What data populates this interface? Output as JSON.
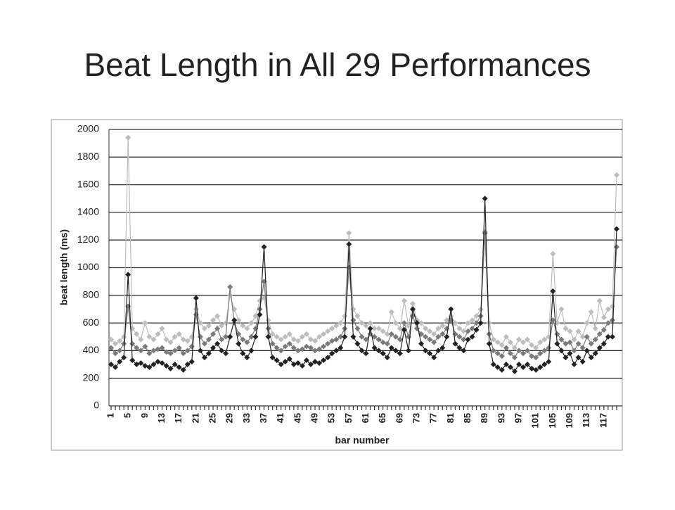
{
  "chart_data": {
    "type": "line",
    "title": "Beat Length in All 29 Performances",
    "y_label": "beat length (ms)",
    "x_label": "bar number",
    "categories": [
      "1",
      null,
      null,
      null,
      "5",
      null,
      null,
      null,
      "9",
      null,
      null,
      null,
      "13",
      null,
      null,
      null,
      "17",
      null,
      null,
      null,
      "21",
      null,
      null,
      null,
      "25",
      null,
      null,
      null,
      "29",
      null,
      null,
      null,
      "33",
      null,
      null,
      null,
      "37",
      null,
      null,
      null,
      "41",
      null,
      null,
      null,
      "45",
      null,
      null,
      null,
      "49",
      null,
      null,
      null,
      "53",
      null,
      null,
      null,
      "57",
      null,
      null,
      null,
      "61",
      null,
      null,
      null,
      "65",
      null,
      null,
      null,
      "69",
      null,
      null,
      null,
      "73",
      null,
      null,
      null,
      "77",
      null,
      null,
      null,
      "81",
      null,
      null,
      null,
      "85",
      null,
      null,
      null,
      "89",
      null,
      null,
      null,
      "93",
      null,
      null,
      null,
      "97",
      null,
      null,
      null,
      "101",
      null,
      null,
      null,
      "105",
      null,
      null,
      null,
      "109",
      null,
      null,
      null,
      "113",
      null,
      null,
      null,
      "117",
      null,
      null,
      null
    ],
    "series": [
      {
        "color": "#bdbdbd",
        "values": [
          480,
          450,
          470,
          500,
          1940,
          560,
          520,
          480,
          600,
          500,
          480,
          520,
          560,
          480,
          460,
          500,
          520,
          480,
          470,
          500,
          700,
          600,
          560,
          580,
          620,
          650,
          580,
          600,
          800,
          700,
          620,
          580,
          560,
          600,
          650,
          760,
          780,
          620,
          520,
          500,
          480,
          500,
          520,
          480,
          470,
          500,
          520,
          480,
          470,
          500,
          520,
          540,
          560,
          580,
          600,
          650,
          1250,
          700,
          650,
          600,
          580,
          600,
          560,
          560,
          540,
          520,
          680,
          600,
          560,
          760,
          580,
          740,
          620,
          600,
          560,
          540,
          520,
          560,
          580,
          620,
          650,
          600,
          560,
          540,
          600,
          620,
          650,
          700,
          1260,
          600,
          480,
          460,
          440,
          500,
          460,
          420,
          480,
          460,
          480,
          440,
          420,
          460,
          480,
          500,
          1100,
          600,
          700,
          560,
          540,
          480,
          540,
          500,
          600,
          680,
          560,
          760,
          640,
          700,
          720,
          1670
        ]
      },
      {
        "color": "#7a7a7a",
        "values": [
          420,
          380,
          400,
          450,
          720,
          450,
          420,
          400,
          430,
          380,
          400,
          410,
          420,
          390,
          380,
          400,
          420,
          380,
          400,
          430,
          660,
          500,
          450,
          480,
          520,
          560,
          480,
          500,
          860,
          600,
          520,
          480,
          460,
          500,
          560,
          700,
          900,
          560,
          450,
          420,
          400,
          430,
          450,
          420,
          400,
          410,
          430,
          420,
          400,
          410,
          430,
          450,
          470,
          480,
          500,
          560,
          1000,
          620,
          560,
          500,
          480,
          520,
          500,
          480,
          460,
          450,
          520,
          500,
          480,
          600,
          500,
          650,
          560,
          520,
          500,
          480,
          460,
          500,
          520,
          560,
          620,
          520,
          500,
          480,
          540,
          560,
          600,
          650,
          1250,
          520,
          400,
          380,
          360,
          420,
          380,
          350,
          400,
          380,
          400,
          360,
          350,
          380,
          400,
          420,
          620,
          520,
          480,
          450,
          460,
          400,
          450,
          420,
          500,
          450,
          480,
          520,
          550,
          600,
          620,
          1150
        ]
      },
      {
        "color": "#222222",
        "values": [
          300,
          280,
          320,
          350,
          950,
          330,
          300,
          310,
          290,
          280,
          300,
          320,
          310,
          290,
          270,
          300,
          280,
          260,
          300,
          320,
          780,
          400,
          350,
          380,
          420,
          450,
          400,
          380,
          500,
          620,
          450,
          380,
          350,
          400,
          500,
          660,
          1150,
          500,
          350,
          330,
          300,
          320,
          340,
          300,
          310,
          290,
          330,
          300,
          320,
          310,
          330,
          350,
          380,
          400,
          420,
          500,
          1170,
          500,
          450,
          400,
          380,
          560,
          420,
          400,
          380,
          350,
          420,
          400,
          380,
          550,
          400,
          700,
          600,
          450,
          400,
          380,
          350,
          400,
          420,
          500,
          700,
          450,
          420,
          400,
          480,
          500,
          550,
          600,
          1500,
          450,
          300,
          280,
          260,
          300,
          280,
          250,
          300,
          280,
          300,
          270,
          260,
          280,
          300,
          320,
          830,
          450,
          400,
          350,
          380,
          300,
          350,
          320,
          400,
          350,
          380,
          420,
          450,
          500,
          500,
          1280
        ]
      }
    ],
    "ylim": [
      0,
      2000
    ],
    "yticks": [
      0,
      200,
      400,
      600,
      800,
      1000,
      1200,
      1400,
      1600,
      1800,
      2000
    ],
    "grid": true
  }
}
